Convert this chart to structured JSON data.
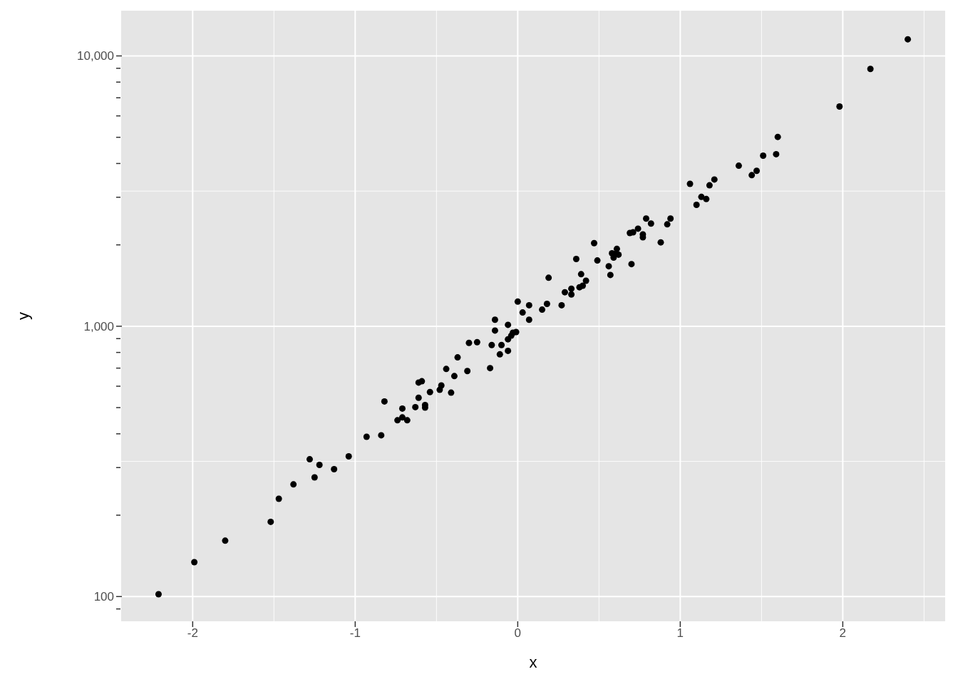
{
  "chart_data": {
    "type": "scatter",
    "xlabel": "x",
    "ylabel": "y",
    "log": "y",
    "grid": true,
    "marker": "circle",
    "xlim": [
      -2.44,
      2.63
    ],
    "xticks": [
      -2,
      -1,
      0,
      1,
      2
    ],
    "ylim": [
      81,
      14700
    ],
    "yticks": [
      {
        "value": 90,
        "label": null
      },
      {
        "value": 100,
        "label": "100"
      },
      {
        "value": 200,
        "label": null
      },
      {
        "value": 300,
        "label": null
      },
      {
        "value": 400,
        "label": null
      },
      {
        "value": 500,
        "label": null
      },
      {
        "value": 600,
        "label": null
      },
      {
        "value": 700,
        "label": null
      },
      {
        "value": 800,
        "label": null
      },
      {
        "value": 900,
        "label": null
      },
      {
        "value": 1000,
        "label": "1,000"
      },
      {
        "value": 2000,
        "label": null
      },
      {
        "value": 3000,
        "label": null
      },
      {
        "value": 4000,
        "label": null
      },
      {
        "value": 5000,
        "label": null
      },
      {
        "value": 6000,
        "label": null
      },
      {
        "value": 7000,
        "label": null
      },
      {
        "value": 8000,
        "label": null
      },
      {
        "value": 9000,
        "label": null
      },
      {
        "value": 10000,
        "label": "10,000"
      }
    ],
    "x": [
      -2.21,
      -1.99,
      -1.8,
      -1.52,
      -1.47,
      -1.38,
      -1.28,
      -1.25,
      -1.22,
      -1.13,
      -1.04,
      -0.93,
      -0.84,
      -0.82,
      -0.74,
      -0.71,
      -0.71,
      -0.68,
      -0.63,
      -0.61,
      -0.61,
      -0.59,
      -0.57,
      -0.57,
      -0.54,
      -0.48,
      -0.47,
      -0.44,
      -0.41,
      -0.39,
      -0.37,
      -0.31,
      -0.3,
      -0.25,
      -0.17,
      -0.16,
      -0.14,
      -0.14,
      -0.11,
      -0.1,
      -0.06,
      -0.06,
      -0.06,
      -0.04,
      -0.03,
      -0.01,
      0,
      0.03,
      0.07,
      0.07,
      0.15,
      0.18,
      0.19,
      0.27,
      0.29,
      0.33,
      0.33,
      0.36,
      0.38,
      0.39,
      0.4,
      0.42,
      0.47,
      0.49,
      0.56,
      0.57,
      0.58,
      0.59,
      0.6,
      0.61,
      0.62,
      0.69,
      0.7,
      0.71,
      0.74,
      0.77,
      0.77,
      0.79,
      0.82,
      0.88,
      0.92,
      0.94,
      1.06,
      1.1,
      1.13,
      1.16,
      1.18,
      1.21,
      1.36,
      1.44,
      1.47,
      1.51,
      1.59,
      1.6,
      1.98,
      2.17,
      2.4
    ],
    "series": [
      {
        "color": "#000000",
        "values": [
          102,
          134,
          161,
          189,
          230,
          260,
          322,
          276,
          307,
          296,
          330,
          390,
          395,
          527,
          449,
          496,
          460,
          449,
          502,
          619,
          544,
          626,
          511,
          500,
          571,
          582,
          604,
          695,
          568,
          654,
          767,
          683,
          868,
          873,
          700,
          852,
          1057,
          964,
          787,
          852,
          1012,
          811,
          895,
          923,
          946,
          952,
          1233,
          1124,
          1196,
          1057,
          1152,
          1210,
          1511,
          1196,
          1336,
          1311,
          1377,
          1773,
          1394,
          1558,
          1412,
          1474,
          2030,
          1751,
          1667,
          1548,
          1862,
          1795,
          1851,
          1932,
          1840,
          2213,
          1698,
          2227,
          2296,
          2133,
          2186,
          2502,
          2398,
          2043,
          2382,
          2502,
          3363,
          2813,
          3010,
          2955,
          3322,
          3490,
          3924,
          3622,
          3757,
          4276,
          4329,
          5017,
          6500,
          8950,
          11520
        ]
      }
    ]
  }
}
